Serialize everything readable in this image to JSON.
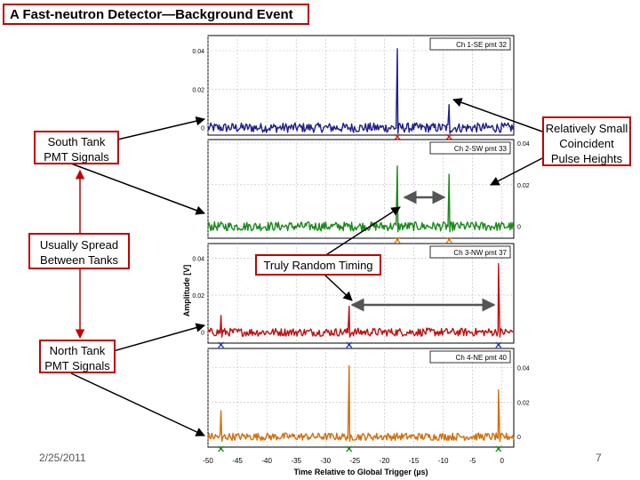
{
  "slide": {
    "title": "A Fast-neutron Detector—Background Event",
    "date": "2/25/2011",
    "page_number": "7"
  },
  "callouts": {
    "south_tank": [
      "South Tank",
      "PMT Signals"
    ],
    "usually_spread": [
      "Usually Spread",
      "Between Tanks"
    ],
    "north_tank": [
      "North Tank",
      "PMT Signals"
    ],
    "random_timing": [
      "Truly Random Timing"
    ],
    "pulse_heights": [
      "Relatively Small",
      "Coincident",
      "Pulse Heights"
    ]
  },
  "colors": {
    "callout_border": "#c00000",
    "arrow": "#000000",
    "ch1": "#1f1f8f",
    "ch2": "#1a8a1a",
    "ch3": "#c01010",
    "ch4": "#d07010",
    "marker_blue": "#2a3aa0",
    "marker_orange": "#e07818",
    "marker_red": "#d02020",
    "marker_green": "#1a8a1a"
  },
  "chart_data": {
    "type": "line",
    "xlabel": "Time Relative to Global Trigger (µs)",
    "ylabel": "Amplitude [V]",
    "xlim": [
      -50,
      2
    ],
    "xticks": [
      -50,
      -45,
      -40,
      -35,
      -30,
      -25,
      -20,
      -15,
      -10,
      -5,
      0
    ],
    "grid": true,
    "panels": [
      {
        "name": "Ch 1-SE pmt 32",
        "color": "#1f1f8f",
        "ylim": [
          -0.002,
          0.046
        ],
        "yticks": [
          0,
          0.02,
          0.04
        ],
        "ytick_side": "left",
        "baseline": 0.0,
        "noise": 0.0025,
        "peaks": [
          {
            "x": -17.8,
            "y": 0.041
          },
          {
            "x": -9,
            "y": 0.012
          }
        ],
        "markers": [
          {
            "x": -17.8,
            "color": "#d02020"
          },
          {
            "x": -9,
            "color": "#d02020"
          }
        ]
      },
      {
        "name": "Ch 2-SW pmt 33",
        "color": "#1a8a1a",
        "ylim": [
          -0.004,
          0.04
        ],
        "yticks": [
          0,
          0.02,
          0.04
        ],
        "ytick_side": "right",
        "baseline": 0.0,
        "noise": 0.0022,
        "peaks": [
          {
            "x": -17.8,
            "y": 0.029
          },
          {
            "x": -9,
            "y": 0.025
          }
        ],
        "markers": [
          {
            "x": -17.8,
            "color": "#e07818"
          },
          {
            "x": -9,
            "color": "#e07818"
          }
        ]
      },
      {
        "name": "Ch 3-NW pmt 37",
        "color": "#c01010",
        "ylim": [
          -0.004,
          0.046
        ],
        "yticks": [
          0,
          0.02,
          0.04
        ],
        "ytick_side": "left",
        "baseline": 0.0,
        "noise": 0.0022,
        "peaks": [
          {
            "x": -47.8,
            "y": 0.009
          },
          {
            "x": -26,
            "y": 0.014
          },
          {
            "x": -0.6,
            "y": 0.037
          }
        ],
        "markers": [
          {
            "x": -47.8,
            "color": "#2a3aa0"
          },
          {
            "x": -26,
            "color": "#2a3aa0"
          },
          {
            "x": -0.6,
            "color": "#2a3aa0"
          }
        ]
      },
      {
        "name": "Ch 4-NE pmt 40",
        "color": "#d07010",
        "ylim": [
          -0.004,
          0.049
        ],
        "yticks": [
          0,
          0.02,
          0.04
        ],
        "ytick_side": "right",
        "baseline": 0.0,
        "noise": 0.0022,
        "peaks": [
          {
            "x": -47.8,
            "y": 0.015
          },
          {
            "x": -26,
            "y": 0.041
          },
          {
            "x": -0.6,
            "y": 0.027
          }
        ],
        "markers": [
          {
            "x": -47.8,
            "color": "#1a8a1a"
          },
          {
            "x": -26,
            "color": "#1a8a1a"
          },
          {
            "x": -0.6,
            "color": "#1a8a1a"
          }
        ]
      }
    ]
  }
}
